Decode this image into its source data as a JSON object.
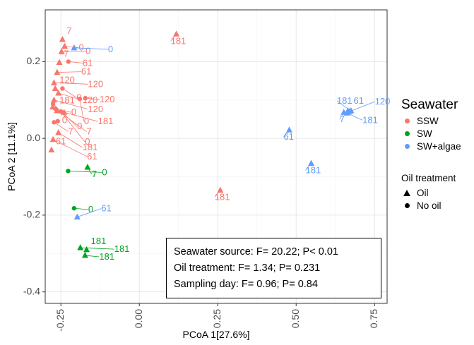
{
  "chart_data": {
    "type": "scatter",
    "xlabel": "PCoA 1[27.6%]",
    "ylabel": "PCoA 2 [11.1%]",
    "xlim": [
      -0.3,
      0.79
    ],
    "ylim": [
      -0.43,
      0.335
    ],
    "xticks": [
      -0.25,
      0.0,
      0.25,
      0.5,
      0.75
    ],
    "xtick_labels": [
      "-0.25",
      "0.00",
      "0.25",
      "0.50",
      "0.75"
    ],
    "yticks": [
      0.2,
      0.0,
      -0.2,
      -0.4
    ],
    "ytick_labels": [
      "0.2",
      "0.0",
      "-0.2",
      "-0.4"
    ],
    "grid": true,
    "legend_position": "right",
    "colors": {
      "SSW": "#f8766d",
      "SW": "#00a31f",
      "SW+algae": "#619cff"
    },
    "points": [
      {
        "x": -0.245,
        "y": 0.258,
        "group": "SSW",
        "shape": "triangle",
        "label": "7"
      },
      {
        "x": -0.238,
        "y": 0.24,
        "group": "SSW",
        "shape": "triangle",
        "label": "0"
      },
      {
        "x": -0.248,
        "y": 0.226,
        "group": "SSW",
        "shape": "triangle",
        "label": "0"
      },
      {
        "x": -0.208,
        "y": 0.236,
        "group": "SW+algae",
        "shape": "triangle",
        "label": "0"
      },
      {
        "x": -0.255,
        "y": 0.198,
        "group": "SSW",
        "shape": "triangle",
        "label": "7"
      },
      {
        "x": -0.226,
        "y": 0.2,
        "group": "SSW",
        "shape": "circle",
        "label": "61"
      },
      {
        "x": -0.262,
        "y": 0.172,
        "group": "SSW",
        "shape": "triangle",
        "label": "61"
      },
      {
        "x": -0.272,
        "y": 0.145,
        "group": "SSW",
        "shape": "triangle",
        "label": "120"
      },
      {
        "x": -0.268,
        "y": 0.13,
        "group": "SSW",
        "shape": "triangle",
        "label": "120"
      },
      {
        "x": -0.245,
        "y": 0.13,
        "group": "SSW",
        "shape": "circle",
        "label": "0"
      },
      {
        "x": -0.258,
        "y": 0.118,
        "group": "SSW",
        "shape": "triangle",
        "label": "120"
      },
      {
        "x": -0.272,
        "y": 0.1,
        "group": "SSW",
        "shape": "triangle",
        "label": "120"
      },
      {
        "x": -0.19,
        "y": 0.103,
        "group": "SSW",
        "shape": "circle",
        "label": "0"
      },
      {
        "x": -0.172,
        "y": 0.105,
        "group": "SSW",
        "shape": "circle",
        "label": "120"
      },
      {
        "x": -0.275,
        "y": 0.09,
        "group": "SSW",
        "shape": "circle",
        "label": "0"
      },
      {
        "x": -0.276,
        "y": 0.082,
        "group": "SSW",
        "shape": "triangle",
        "label": "7"
      },
      {
        "x": -0.268,
        "y": 0.077,
        "group": "SSW",
        "shape": "circle",
        "label": "181"
      },
      {
        "x": -0.262,
        "y": 0.072,
        "group": "SSW",
        "shape": "triangle",
        "label": "0"
      },
      {
        "x": -0.25,
        "y": 0.07,
        "group": "SSW",
        "shape": "circle",
        "label": "0"
      },
      {
        "x": -0.24,
        "y": 0.068,
        "group": "SSW",
        "shape": "triangle",
        "label": "181"
      },
      {
        "x": -0.26,
        "y": 0.045,
        "group": "SSW",
        "shape": "circle",
        "label": "0"
      },
      {
        "x": -0.272,
        "y": 0.042,
        "group": "SSW",
        "shape": "circle",
        "label": "7"
      },
      {
        "x": -0.258,
        "y": 0.015,
        "group": "SSW",
        "shape": "triangle",
        "label": "181"
      },
      {
        "x": -0.275,
        "y": -0.003,
        "group": "SSW",
        "shape": "triangle",
        "label": "61"
      },
      {
        "x": -0.28,
        "y": -0.03,
        "group": "SSW",
        "shape": "triangle",
        "label": "61"
      },
      {
        "x": 0.118,
        "y": 0.272,
        "group": "SSW",
        "shape": "triangle",
        "label": "181"
      },
      {
        "x": 0.258,
        "y": -0.135,
        "group": "SSW",
        "shape": "triangle",
        "label": "181"
      },
      {
        "x": -0.227,
        "y": -0.085,
        "group": "SW",
        "shape": "circle",
        "label": "0"
      },
      {
        "x": -0.165,
        "y": -0.075,
        "group": "SW",
        "shape": "triangle",
        "label": "7"
      },
      {
        "x": -0.208,
        "y": -0.182,
        "group": "SW",
        "shape": "circle",
        "label": "0"
      },
      {
        "x": -0.198,
        "y": -0.205,
        "group": "SW+algae",
        "shape": "triangle",
        "label": "61"
      },
      {
        "x": -0.188,
        "y": -0.285,
        "group": "SW",
        "shape": "triangle",
        "label": "181"
      },
      {
        "x": -0.168,
        "y": -0.29,
        "group": "SW",
        "shape": "triangle",
        "label": "181"
      },
      {
        "x": -0.173,
        "y": -0.305,
        "group": "SW",
        "shape": "triangle",
        "label": "181"
      },
      {
        "x": 0.478,
        "y": 0.022,
        "group": "SW+algae",
        "shape": "triangle",
        "label": "61"
      },
      {
        "x": 0.548,
        "y": -0.065,
        "group": "SW+algae",
        "shape": "triangle",
        "label": "181"
      },
      {
        "x": 0.652,
        "y": 0.068,
        "group": "SW+algae",
        "shape": "triangle",
        "label": "7"
      },
      {
        "x": 0.665,
        "y": 0.072,
        "group": "SW+algae",
        "shape": "triangle",
        "label": "61"
      },
      {
        "x": 0.662,
        "y": 0.066,
        "group": "SW+algae",
        "shape": "triangle",
        "label": "181"
      },
      {
        "x": 0.67,
        "y": 0.07,
        "group": "SW+algae",
        "shape": "triangle",
        "label": "120"
      },
      {
        "x": 0.675,
        "y": 0.072,
        "group": "SW+algae",
        "shape": "triangle",
        "label": "181"
      }
    ]
  },
  "legend": {
    "title": "Seawater",
    "items": [
      {
        "label": "SSW",
        "color": "#f8766d"
      },
      {
        "label": "SW",
        "color": "#00a31f"
      },
      {
        "label": "SW+algae",
        "color": "#619cff"
      }
    ]
  },
  "legend2": {
    "title": "Oil treatment",
    "items": [
      {
        "label": "Oil",
        "shape": "triangle"
      },
      {
        "label": "No oil",
        "shape": "circle"
      }
    ]
  },
  "stats": {
    "line1": "Seawater source: F= 20.22; P< 0.01",
    "line2": "Oil treatment: F= 1.34; P= 0.231",
    "line3": "Sampling day: F= 0.96; P= 0.84"
  }
}
